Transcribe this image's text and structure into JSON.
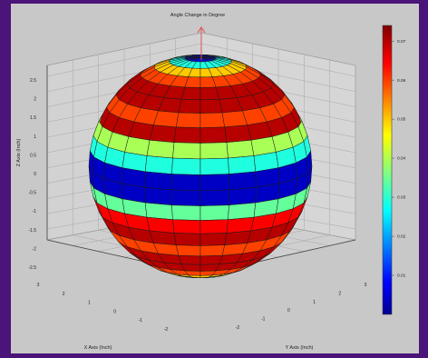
{
  "chart_data": {
    "type": "surface",
    "title": "Angle Change in Degree",
    "xlabel": "X Axis (Inch)",
    "ylabel": "Y Axis (Inch)",
    "zlabel": "Z Axis (Inch)",
    "x_ticks": [
      "3",
      "2",
      "1",
      "0",
      "-1",
      "-2"
    ],
    "y_ticks": [
      "-2",
      "-1",
      "0",
      "1",
      "2",
      "3"
    ],
    "z_ticks": [
      "2.5",
      "2",
      "1.5",
      "1",
      "0.5",
      "0",
      "-0.5",
      "-1",
      "-1.5",
      "-2",
      "-2.5"
    ],
    "colorbar": {
      "ticks": [
        "0.07",
        "0.06",
        "0.05",
        "0.04",
        "0.03",
        "0.02",
        "0.01"
      ],
      "range": [
        0,
        0.074
      ],
      "colormap": "jet"
    },
    "grid": true,
    "surface": {
      "shape": "sphere",
      "radius": 3,
      "latitude_bands": [
        0.01,
        0.03,
        0.05,
        0.06,
        0.07,
        0.07,
        0.06,
        0.07,
        0.04,
        0.03,
        0.005,
        0.005,
        0.035,
        0.065,
        0.07,
        0.06,
        0.07,
        0.07,
        0.06,
        0.05,
        0.03,
        0.01
      ]
    }
  }
}
